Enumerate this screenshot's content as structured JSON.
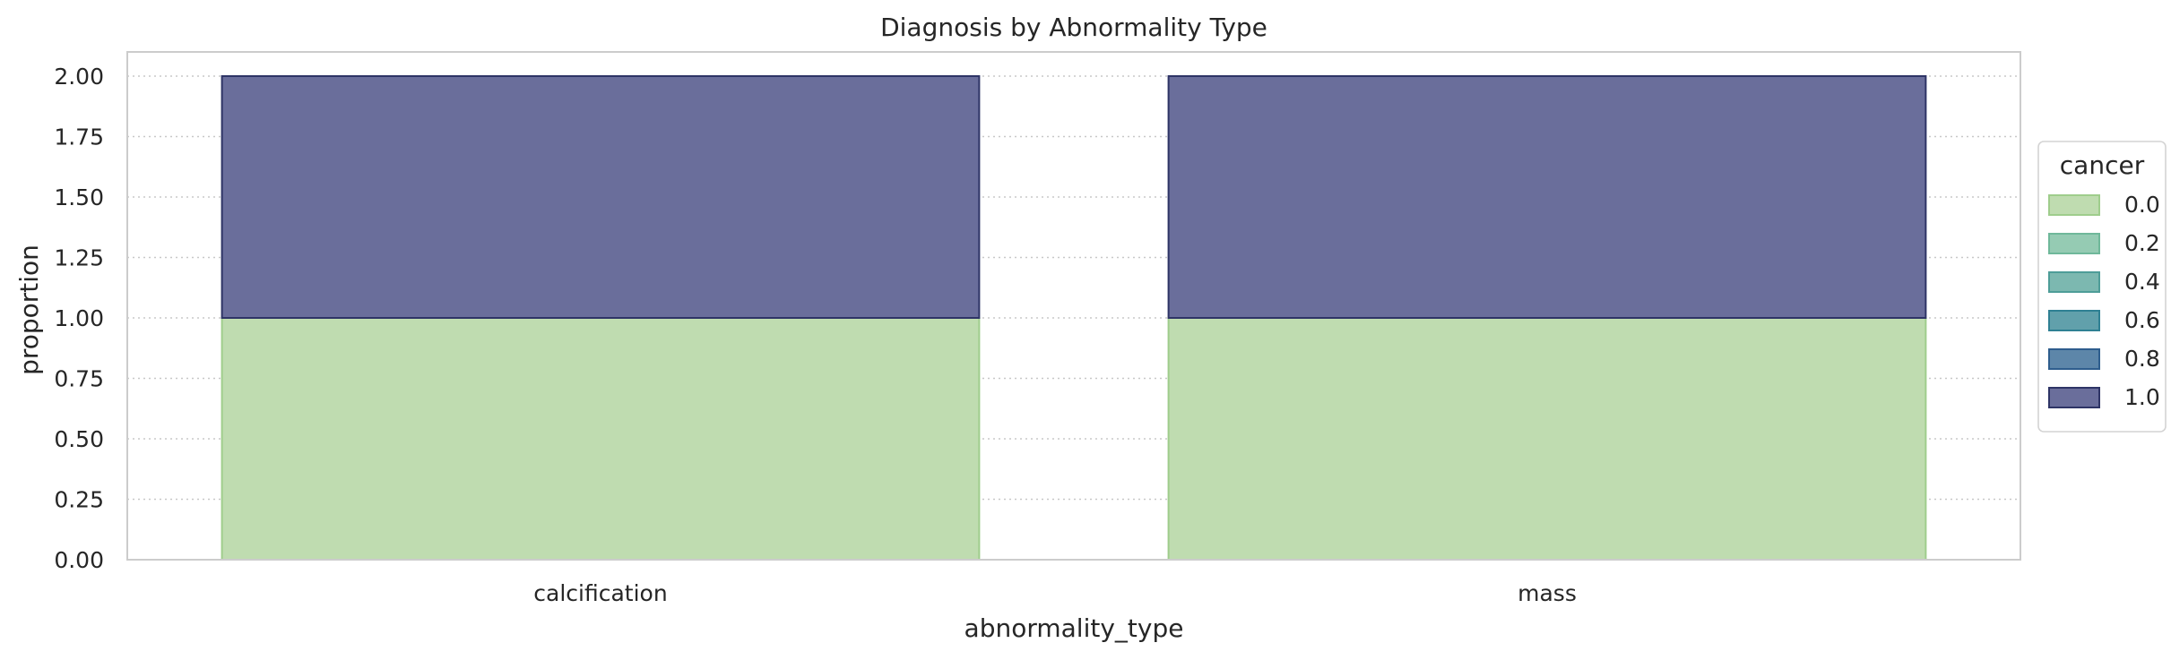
{
  "chart_data": {
    "type": "bar",
    "stacked": true,
    "title": "Diagnosis by Abnormality Type",
    "xlabel": "abnormality_type",
    "ylabel": "proportion",
    "categories": [
      "calcification",
      "mass"
    ],
    "ylim": [
      0,
      2.1
    ],
    "yticks": [
      "0.00",
      "0.25",
      "0.50",
      "0.75",
      "1.00",
      "1.25",
      "1.50",
      "1.75",
      "2.00"
    ],
    "grid": "y-dotted",
    "series": [
      {
        "name": "0.0",
        "values": [
          1.0,
          1.0
        ],
        "color": "#bfdcb0",
        "edge": "#9fcd8c"
      },
      {
        "name": "1.0",
        "values": [
          1.0,
          1.0
        ],
        "color": "#6a6e9b",
        "edge": "#2e3466"
      }
    ],
    "legend": {
      "title": "cancer",
      "position": "right",
      "entries": [
        {
          "label": "0.0",
          "color": "#bfdcb0",
          "edge": "#9fcd8c"
        },
        {
          "label": "0.2",
          "color": "#95cbb3",
          "edge": "#6fb89a"
        },
        {
          "label": "0.4",
          "color": "#7cb8b0",
          "edge": "#4e9d98"
        },
        {
          "label": "0.6",
          "color": "#61a0ab",
          "edge": "#2f8093"
        },
        {
          "label": "0.8",
          "color": "#5d86a9",
          "edge": "#2e5d8d"
        },
        {
          "label": "1.0",
          "color": "#6a6e9b",
          "edge": "#2e3466"
        }
      ]
    }
  }
}
